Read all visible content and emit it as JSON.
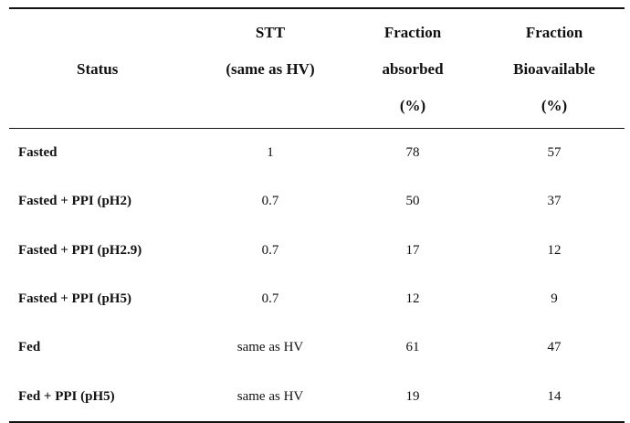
{
  "table": {
    "headers": {
      "status": "Status",
      "stt_line1": "STT",
      "stt_line2": "(same as HV)",
      "fa_line1": "Fraction",
      "fa_line2": "absorbed",
      "fa_line3": "(%)",
      "fb_line1": "Fraction",
      "fb_line2": "Bioavailable",
      "fb_line3": "(%)"
    },
    "rows": [
      {
        "status": "Fasted",
        "stt": "1",
        "fraction_absorbed": "78",
        "fraction_bioavailable": "57"
      },
      {
        "status": "Fasted + PPI (pH2)",
        "stt": "0.7",
        "fraction_absorbed": "50",
        "fraction_bioavailable": "37"
      },
      {
        "status": "Fasted + PPI (pH2.9)",
        "stt": "0.7",
        "fraction_absorbed": "17",
        "fraction_bioavailable": "12"
      },
      {
        "status": "Fasted + PPI (pH5)",
        "stt": "0.7",
        "fraction_absorbed": "12",
        "fraction_bioavailable": "9"
      },
      {
        "status": "Fed",
        "stt": "same as HV",
        "fraction_absorbed": "61",
        "fraction_bioavailable": "47"
      },
      {
        "status": "Fed + PPI (pH5)",
        "stt": "same as HV",
        "fraction_absorbed": "19",
        "fraction_bioavailable": "14"
      }
    ]
  }
}
